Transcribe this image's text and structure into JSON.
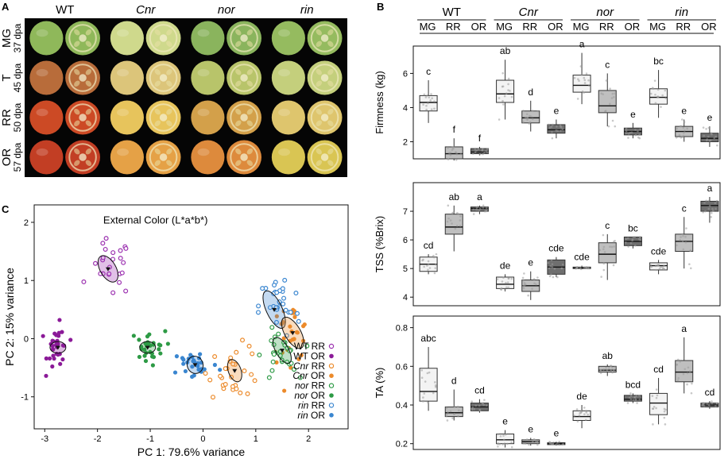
{
  "panels": {
    "a": {
      "letter": "A",
      "genotypes": [
        "WT",
        "Cnr",
        "nor",
        "rin"
      ],
      "stages": [
        {
          "stage": "MG",
          "dpa": "37 dpa"
        },
        {
          "stage": "T",
          "dpa": "45 dpa"
        },
        {
          "stage": "RR",
          "dpa": "50 dpa"
        },
        {
          "stage": "OR",
          "dpa": "57 dpa"
        }
      ],
      "fruit_colors": {
        "WT": [
          "#8fb85a",
          "#b86c3a",
          "#cc4a25",
          "#c23e24"
        ],
        "Cnr": [
          "#cfd98c",
          "#dcc57a",
          "#e7c45c",
          "#e5a146"
        ],
        "nor": [
          "#8ab45d",
          "#b8c46a",
          "#d3a04a",
          "#dd8a3c"
        ],
        "rin": [
          "#95bb5f",
          "#c4cf7c",
          "#dec56d",
          "#d9c553"
        ]
      }
    },
    "b": {
      "letter": "B",
      "genotypes": [
        "WT",
        "Cnr",
        "nor",
        "rin"
      ],
      "stages": [
        "MG",
        "RR",
        "OR"
      ],
      "box_fills": [
        "#f3f3f3",
        "#bfbfbf",
        "#6f6f6f"
      ]
    },
    "c": {
      "letter": "C"
    }
  },
  "chart_data": [
    {
      "type": "box",
      "ylabel": "Firmness (kg)",
      "ylim": [
        1,
        7.6
      ],
      "yticks": [
        2,
        4,
        6
      ],
      "groups": [
        {
          "genotype": "WT",
          "boxes": [
            {
              "stage": "MG",
              "q1": 3.8,
              "median": 4.3,
              "q3": 4.7,
              "whisker_low": 3.1,
              "whisker_high": 5.6,
              "letter": "c"
            },
            {
              "stage": "RR",
              "q1": 1.0,
              "median": 1.3,
              "q3": 1.7,
              "whisker_low": 0.9,
              "whisker_high": 2.2,
              "letter": "f"
            },
            {
              "stage": "OR",
              "q1": 1.3,
              "median": 1.4,
              "q3": 1.6,
              "whisker_low": 1.2,
              "whisker_high": 1.7,
              "letter": "f"
            }
          ]
        },
        {
          "genotype": "Cnr",
          "boxes": [
            {
              "stage": "MG",
              "q1": 4.3,
              "median": 4.8,
              "q3": 5.6,
              "whisker_low": 3.3,
              "whisker_high": 6.8,
              "letter": "ab"
            },
            {
              "stage": "RR",
              "q1": 3.1,
              "median": 3.4,
              "q3": 3.8,
              "whisker_low": 2.6,
              "whisker_high": 4.4,
              "letter": "d"
            },
            {
              "stage": "OR",
              "q1": 2.5,
              "median": 2.7,
              "q3": 3.0,
              "whisker_low": 2.2,
              "whisker_high": 3.3,
              "letter": "e"
            }
          ]
        },
        {
          "genotype": "nor",
          "boxes": [
            {
              "stage": "MG",
              "q1": 4.9,
              "median": 5.3,
              "q3": 5.9,
              "whisker_low": 4.2,
              "whisker_high": 7.2,
              "letter": "a"
            },
            {
              "stage": "RR",
              "q1": 3.7,
              "median": 4.1,
              "q3": 5.0,
              "whisker_low": 2.9,
              "whisker_high": 6.0,
              "letter": "c"
            },
            {
              "stage": "OR",
              "q1": 2.4,
              "median": 2.6,
              "q3": 2.8,
              "whisker_low": 2.2,
              "whisker_high": 3.1,
              "letter": "e"
            }
          ]
        },
        {
          "genotype": "rin",
          "boxes": [
            {
              "stage": "MG",
              "q1": 4.2,
              "median": 4.6,
              "q3": 5.1,
              "whisker_low": 3.4,
              "whisker_high": 6.2,
              "letter": "bc"
            },
            {
              "stage": "RR",
              "q1": 2.3,
              "median": 2.6,
              "q3": 2.9,
              "whisker_low": 2.0,
              "whisker_high": 3.3,
              "letter": "e"
            },
            {
              "stage": "OR",
              "q1": 2.0,
              "median": 2.2,
              "q3": 2.5,
              "whisker_low": 1.7,
              "whisker_high": 2.9,
              "letter": "e"
            }
          ]
        }
      ]
    },
    {
      "type": "box",
      "ylabel": "TSS (%Brix)",
      "ylim": [
        3.7,
        8.0
      ],
      "yticks": [
        4,
        5,
        6,
        7
      ],
      "groups": [
        {
          "genotype": "WT",
          "boxes": [
            {
              "stage": "MG",
              "q1": 4.9,
              "median": 5.15,
              "q3": 5.4,
              "whisker_low": 4.8,
              "whisker_high": 5.5,
              "letter": "cd"
            },
            {
              "stage": "RR",
              "q1": 6.2,
              "median": 6.45,
              "q3": 6.9,
              "whisker_low": 5.6,
              "whisker_high": 7.2,
              "letter": "ab"
            },
            {
              "stage": "OR",
              "q1": 7.0,
              "median": 7.1,
              "q3": 7.15,
              "whisker_low": 6.9,
              "whisker_high": 7.2,
              "letter": "a"
            }
          ]
        },
        {
          "genotype": "Cnr",
          "boxes": [
            {
              "stage": "MG",
              "q1": 4.3,
              "median": 4.45,
              "q3": 4.7,
              "whisker_low": 4.2,
              "whisker_high": 4.8,
              "letter": "de"
            },
            {
              "stage": "RR",
              "q1": 4.2,
              "median": 4.4,
              "q3": 4.6,
              "whisker_low": 3.9,
              "whisker_high": 4.9,
              "letter": "e"
            },
            {
              "stage": "OR",
              "q1": 4.8,
              "median": 5.05,
              "q3": 5.3,
              "whisker_low": 4.7,
              "whisker_high": 5.4,
              "letter": "cde"
            }
          ]
        },
        {
          "genotype": "nor",
          "boxes": [
            {
              "stage": "MG",
              "q1": 5.0,
              "median": 5.02,
              "q3": 5.05,
              "whisker_low": 4.98,
              "whisker_high": 5.1,
              "letter": "cde"
            },
            {
              "stage": "RR",
              "q1": 5.2,
              "median": 5.5,
              "q3": 5.9,
              "whisker_low": 4.6,
              "whisker_high": 6.2,
              "letter": "c"
            },
            {
              "stage": "OR",
              "q1": 5.8,
              "median": 5.95,
              "q3": 6.1,
              "whisker_low": 5.7,
              "whisker_high": 6.1,
              "letter": "bc"
            }
          ]
        },
        {
          "genotype": "rin",
          "boxes": [
            {
              "stage": "MG",
              "q1": 4.95,
              "median": 5.1,
              "q3": 5.2,
              "whisker_low": 4.8,
              "whisker_high": 5.3,
              "letter": "cde"
            },
            {
              "stage": "RR",
              "q1": 5.6,
              "median": 5.95,
              "q3": 6.2,
              "whisker_low": 5.0,
              "whisker_high": 6.8,
              "letter": "c"
            },
            {
              "stage": "OR",
              "q1": 7.0,
              "median": 7.2,
              "q3": 7.35,
              "whisker_low": 6.6,
              "whisker_high": 7.5,
              "letter": "a"
            }
          ]
        }
      ]
    },
    {
      "type": "box",
      "ylabel": "TA (%)",
      "ylim": [
        0.17,
        0.86
      ],
      "yticks": [
        0.2,
        0.4,
        0.6,
        0.8
      ],
      "yticklabels": [
        "0.2",
        "0.4",
        "0.6",
        "0.8"
      ],
      "groups": [
        {
          "genotype": "WT",
          "boxes": [
            {
              "stage": "MG",
              "q1": 0.42,
              "median": 0.47,
              "q3": 0.59,
              "whisker_low": 0.37,
              "whisker_high": 0.7,
              "letter": "abc"
            },
            {
              "stage": "RR",
              "q1": 0.34,
              "median": 0.36,
              "q3": 0.39,
              "whisker_low": 0.32,
              "whisker_high": 0.48,
              "letter": "d"
            },
            {
              "stage": "OR",
              "q1": 0.37,
              "median": 0.39,
              "q3": 0.41,
              "whisker_low": 0.36,
              "whisker_high": 0.43,
              "letter": "cd"
            }
          ]
        },
        {
          "genotype": "Cnr",
          "boxes": [
            {
              "stage": "MG",
              "q1": 0.2,
              "median": 0.22,
              "q3": 0.25,
              "whisker_low": 0.18,
              "whisker_high": 0.27,
              "letter": "e"
            },
            {
              "stage": "RR",
              "q1": 0.2,
              "median": 0.21,
              "q3": 0.22,
              "whisker_low": 0.19,
              "whisker_high": 0.23,
              "letter": "e"
            },
            {
              "stage": "OR",
              "q1": 0.195,
              "median": 0.2,
              "q3": 0.205,
              "whisker_low": 0.19,
              "whisker_high": 0.21,
              "letter": "e"
            }
          ]
        },
        {
          "genotype": "nor",
          "boxes": [
            {
              "stage": "MG",
              "q1": 0.32,
              "median": 0.34,
              "q3": 0.37,
              "whisker_low": 0.28,
              "whisker_high": 0.4,
              "letter": "de"
            },
            {
              "stage": "RR",
              "q1": 0.57,
              "median": 0.58,
              "q3": 0.6,
              "whisker_low": 0.55,
              "whisker_high": 0.61,
              "letter": "ab"
            },
            {
              "stage": "OR",
              "q1": 0.42,
              "median": 0.43,
              "q3": 0.45,
              "whisker_low": 0.41,
              "whisker_high": 0.46,
              "letter": "bcd"
            }
          ]
        },
        {
          "genotype": "rin",
          "boxes": [
            {
              "stage": "MG",
              "q1": 0.35,
              "median": 0.41,
              "q3": 0.46,
              "whisker_low": 0.3,
              "whisker_high": 0.54,
              "letter": "cd"
            },
            {
              "stage": "RR",
              "q1": 0.52,
              "median": 0.57,
              "q3": 0.63,
              "whisker_low": 0.46,
              "whisker_high": 0.75,
              "letter": "a"
            },
            {
              "stage": "OR",
              "q1": 0.39,
              "median": 0.4,
              "q3": 0.41,
              "whisker_low": 0.38,
              "whisker_high": 0.42,
              "letter": "cd"
            }
          ]
        }
      ]
    },
    {
      "type": "scatter",
      "title": "External Color (L*a*b*)",
      "xlabel": "PC 1: 79.6% variance",
      "ylabel": "PC 2: 15% variance",
      "xlim": [
        -3.2,
        2.75
      ],
      "ylim": [
        -1.55,
        2.3
      ],
      "xticks": [
        -3,
        -2,
        -1,
        0,
        1,
        2
      ],
      "yticks": [
        -1,
        0,
        1,
        2
      ],
      "legend_position": "right",
      "series": [
        {
          "name": "WT RR",
          "genotype": "WT",
          "stage": "RR",
          "color": "#9b30b0",
          "filled": false,
          "center": [
            -1.75,
            1.2
          ],
          "spread": [
            0.35,
            0.45
          ],
          "n": 24
        },
        {
          "name": "WT OR",
          "genotype": "WT",
          "stage": "OR",
          "color": "#8b1a98",
          "filled": true,
          "center": [
            -2.75,
            -0.15
          ],
          "spread": [
            0.18,
            0.35
          ],
          "n": 34
        },
        {
          "name": "Cnr RR",
          "genotype": "Cnr",
          "stage": "RR",
          "color": "#ec8a2a",
          "filled": false,
          "center": [
            0.6,
            -0.55
          ],
          "spread": [
            0.45,
            0.4
          ],
          "n": 30
        },
        {
          "name": "Cnr OR",
          "genotype": "Cnr",
          "stage": "OR",
          "color": "#ec8a2a",
          "filled": true,
          "center": [
            1.65,
            0.1
          ],
          "spread": [
            0.35,
            0.45
          ],
          "n": 30
        },
        {
          "name": "nor RR",
          "genotype": "nor",
          "stage": "RR",
          "color": "#2d9a45",
          "filled": false,
          "center": [
            1.45,
            -0.3
          ],
          "spread": [
            0.3,
            0.4
          ],
          "n": 28
        },
        {
          "name": "nor OR",
          "genotype": "nor",
          "stage": "OR",
          "color": "#2d9a45",
          "filled": true,
          "center": [
            -1.05,
            -0.15
          ],
          "spread": [
            0.3,
            0.25
          ],
          "n": 30
        },
        {
          "name": "rin RR",
          "genotype": "rin",
          "stage": "RR",
          "color": "#3a86d0",
          "filled": false,
          "center": [
            1.45,
            0.55
          ],
          "spread": [
            0.35,
            0.5
          ],
          "n": 30
        },
        {
          "name": "rin OR",
          "genotype": "rin",
          "stage": "OR",
          "color": "#3a86d0",
          "filled": true,
          "center": [
            -0.15,
            -0.45
          ],
          "spread": [
            0.4,
            0.25
          ],
          "n": 30
        }
      ],
      "ellipses": [
        {
          "series": "WT RR",
          "center": [
            -1.8,
            1.2
          ],
          "rx": 0.15,
          "ry": 0.25,
          "angle": -30
        },
        {
          "series": "WT OR",
          "center": [
            -2.75,
            -0.15
          ],
          "rx": 0.15,
          "ry": 0.1,
          "angle": 0
        },
        {
          "series": "nor OR",
          "center": [
            -1.05,
            -0.15
          ],
          "rx": 0.15,
          "ry": 0.1,
          "angle": 0
        },
        {
          "series": "rin OR",
          "center": [
            -0.15,
            -0.45
          ],
          "rx": 0.15,
          "ry": 0.15,
          "angle": -20
        },
        {
          "series": "Cnr RR",
          "center": [
            0.6,
            -0.55
          ],
          "rx": 0.12,
          "ry": 0.2,
          "angle": -20
        },
        {
          "series": "rin RR",
          "center": [
            1.35,
            0.5
          ],
          "rx": 0.15,
          "ry": 0.35,
          "angle": -25
        },
        {
          "series": "Cnr OR",
          "center": [
            1.7,
            0.1
          ],
          "rx": 0.15,
          "ry": 0.3,
          "angle": -30
        },
        {
          "series": "nor RR",
          "center": [
            1.5,
            -0.2
          ],
          "rx": 0.12,
          "ry": 0.25,
          "angle": -30
        }
      ]
    }
  ]
}
